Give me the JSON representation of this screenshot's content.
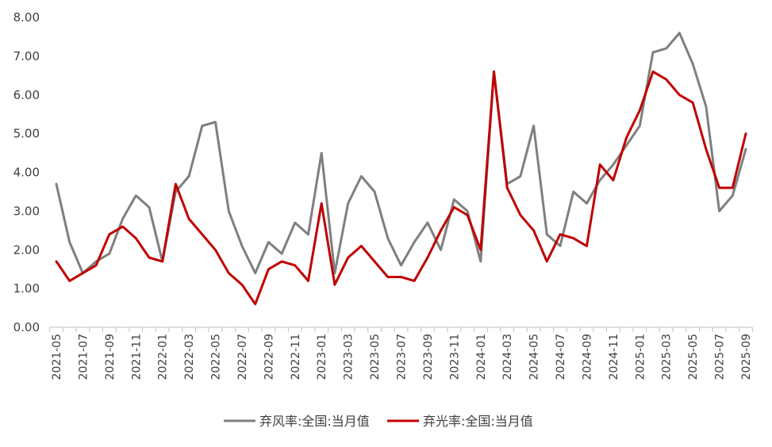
{
  "chart_data": {
    "type": "line",
    "title": "",
    "xlabel": "",
    "ylabel": "",
    "ylim": [
      0,
      8
    ],
    "y_ticks": [
      "0.00",
      "1.00",
      "2.00",
      "3.00",
      "4.00",
      "5.00",
      "6.00",
      "7.00",
      "8.00"
    ],
    "grid": false,
    "legend_position": "bottom",
    "x": [
      "2021-05",
      "2021-06",
      "2021-07",
      "2021-08",
      "2021-09",
      "2021-10",
      "2021-11",
      "2021-12",
      "2022-01",
      "2022-02",
      "2022-03",
      "2022-04",
      "2022-05",
      "2022-06",
      "2022-07",
      "2022-08",
      "2022-09",
      "2022-10",
      "2022-11",
      "2022-12",
      "2023-01",
      "2023-02",
      "2023-03",
      "2023-04",
      "2023-05",
      "2023-06",
      "2023-07",
      "2023-08",
      "2023-09",
      "2023-10",
      "2023-11",
      "2023-12",
      "2024-01",
      "2024-02",
      "2024-03",
      "2024-04",
      "2024-05",
      "2024-06",
      "2024-07",
      "2024-08",
      "2024-09",
      "2024-10",
      "2024-11",
      "2024-12",
      "2025-01",
      "2025-02",
      "2025-03",
      "2025-04",
      "2025-05",
      "2025-06",
      "2025-07",
      "2025-08",
      "2025-09"
    ],
    "x_tick_labels": [
      "2021-05",
      "2021-07",
      "2021-09",
      "2021-11",
      "2022-01",
      "2022-03",
      "2022-05",
      "2022-07",
      "2022-09",
      "2022-11",
      "2023-01",
      "2023-03",
      "2023-05",
      "2023-07",
      "2023-09",
      "2023-11",
      "2024-01",
      "2024-03",
      "2024-05",
      "2024-07",
      "2024-09",
      "2024-11",
      "2025-01",
      "2025-03",
      "2025-05",
      "2025-07",
      "2025-09"
    ],
    "series": [
      {
        "name": "弃风率:全国:当月值",
        "color": "#7f7f7f",
        "values": [
          3.7,
          2.2,
          1.4,
          1.7,
          1.9,
          2.8,
          3.4,
          3.1,
          1.7,
          3.5,
          3.9,
          5.2,
          5.3,
          3.0,
          2.1,
          1.4,
          2.2,
          1.9,
          2.7,
          2.4,
          4.5,
          1.4,
          3.2,
          3.9,
          3.5,
          2.3,
          1.6,
          2.2,
          2.7,
          2.0,
          3.3,
          3.0,
          1.7,
          6.6,
          3.7,
          3.9,
          5.2,
          2.4,
          2.1,
          3.5,
          3.2,
          3.8,
          4.2,
          4.7,
          5.2,
          7.1,
          7.2,
          7.6,
          6.8,
          5.7,
          3.0,
          3.4,
          4.6
        ]
      },
      {
        "name": "弃光率:全国:当月值",
        "color": "#c00000",
        "values": [
          1.7,
          1.2,
          1.4,
          1.6,
          2.4,
          2.6,
          2.3,
          1.8,
          1.7,
          3.7,
          2.8,
          2.4,
          2.0,
          1.4,
          1.1,
          0.6,
          1.5,
          1.7,
          1.6,
          1.2,
          3.2,
          1.1,
          1.8,
          2.1,
          1.7,
          1.3,
          1.3,
          1.2,
          1.8,
          2.5,
          3.1,
          2.9,
          2.0,
          6.6,
          3.6,
          2.9,
          2.5,
          1.7,
          2.4,
          2.3,
          2.1,
          4.2,
          3.8,
          4.9,
          5.6,
          6.6,
          6.4,
          6.0,
          5.8,
          4.6,
          3.6,
          3.6,
          5.0
        ]
      }
    ]
  }
}
